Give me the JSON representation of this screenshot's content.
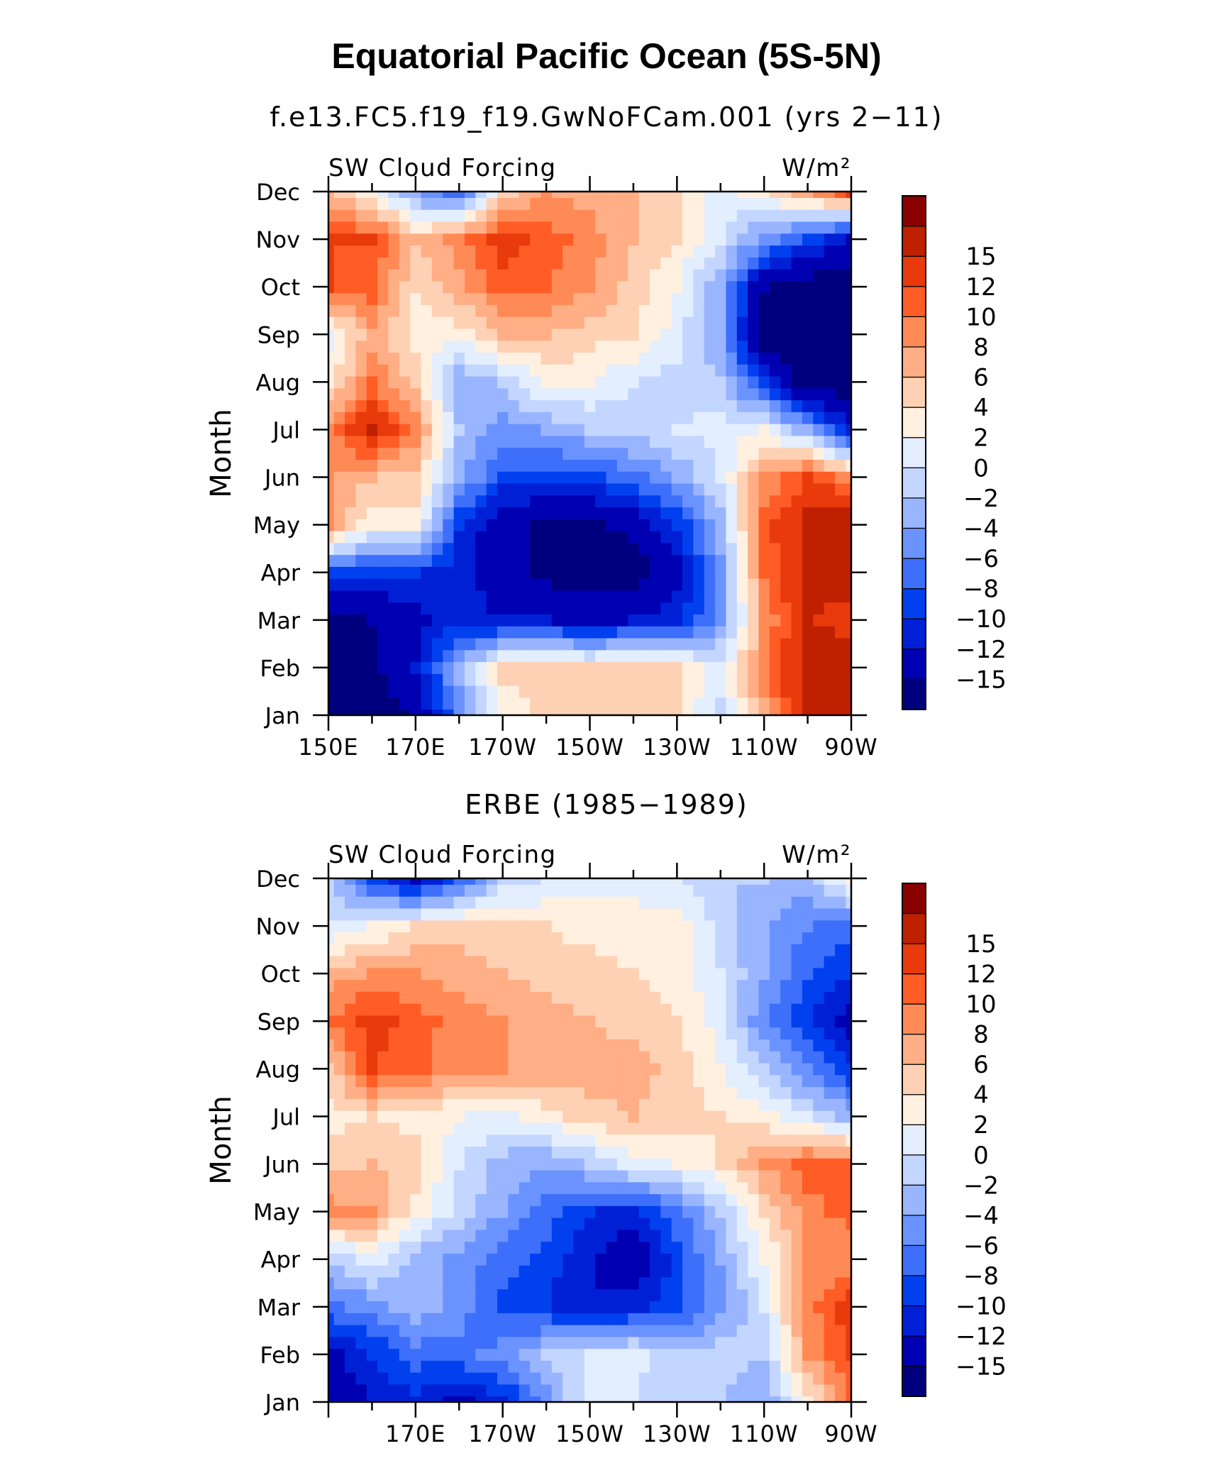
{
  "title": "Equatorial Pacific Ocean (5S-5N)",
  "colors": {
    "levels": [
      "#00007e",
      "#0000b3",
      "#0020d6",
      "#0040ef",
      "#3d6ffa",
      "#6a93ff",
      "#9ab5ff",
      "#c3d6ff",
      "#e3eeff",
      "#fff0e0",
      "#ffd1b4",
      "#ffae85",
      "#ff8a56",
      "#ff5c26",
      "#e83a0a",
      "#bf2000",
      "#8a0000"
    ],
    "level_labels": [
      "−15",
      "−12",
      "−10",
      "−8",
      "−6",
      "−4",
      "−2",
      "0",
      "2",
      "4",
      "6",
      "8",
      "10",
      "12",
      "15"
    ]
  },
  "chart_data": [
    {
      "type": "heatmap",
      "title": "f.e13.FC5.f19_f19.GwNoFCam.001 (yrs 2−11)",
      "left_label": "SW Cloud Forcing",
      "right_label": "W/m²",
      "ylabel": "Month",
      "xlabel": "",
      "x_ticks": [
        "150E",
        "170E",
        "170W",
        "150W",
        "130W",
        "110W",
        "90W"
      ],
      "y_ticks": [
        "Jan",
        "Feb",
        "Mar",
        "Apr",
        "May",
        "Jun",
        "Jul",
        "Aug",
        "Sep",
        "Oct",
        "Nov",
        "Dec"
      ],
      "x_lon": [
        150,
        160,
        170,
        180,
        190,
        200,
        210,
        220,
        230,
        240,
        250,
        260,
        270
      ],
      "colorbar": {
        "labels": [
          "−15",
          "−12",
          "−10",
          "−8",
          "−6",
          "−4",
          "−2",
          "0",
          "2",
          "4",
          "6",
          "8",
          "10",
          "12",
          "15"
        ]
      },
      "values": [
        [
          -17,
          -17,
          -15,
          -6,
          2,
          5,
          4,
          5,
          4,
          -1,
          7,
          16,
          16
        ],
        [
          -17,
          -16,
          -12,
          -3,
          5,
          5,
          4,
          5,
          4,
          1,
          9,
          16,
          17
        ],
        [
          -16,
          -15,
          -13,
          -11,
          -12,
          -12,
          -13,
          -12,
          -11,
          -5,
          8,
          15,
          14
        ],
        [
          -9,
          -10,
          -10,
          -11,
          -14,
          -16,
          -17,
          -17,
          -13,
          -5,
          10,
          16,
          16
        ],
        [
          9,
          2,
          3,
          -10,
          -14,
          -16,
          -16,
          -14,
          -10,
          -3,
          11,
          16,
          17
        ],
        [
          8,
          6,
          5,
          -3,
          -9,
          -9,
          -9,
          -7,
          -4,
          0,
          8,
          12,
          9
        ],
        [
          9,
          15,
          9,
          -2,
          -5,
          -4,
          -2,
          -1,
          0,
          1,
          2,
          -4,
          -12
        ],
        [
          3,
          10,
          5,
          -4,
          -2,
          3,
          2,
          0,
          -1,
          -2,
          -10,
          -17,
          -17
        ],
        [
          1,
          7,
          3,
          3,
          6,
          6,
          5,
          4,
          1,
          -4,
          -17,
          -17,
          -17
        ],
        [
          12,
          11,
          4,
          7,
          11,
          10,
          8,
          5,
          2,
          -4,
          -15,
          -17,
          -17
        ],
        [
          12,
          12,
          6,
          9,
          13,
          11,
          9,
          6,
          4,
          0,
          -5,
          -9,
          -13
        ],
        [
          6,
          3,
          -4,
          -8,
          5,
          8,
          7,
          6,
          4,
          1,
          3,
          7,
          12
        ]
      ]
    },
    {
      "type": "heatmap",
      "title": "ERBE (1985−1989)",
      "left_label": "SW Cloud Forcing",
      "right_label": "W/m²",
      "ylabel": "Month",
      "xlabel": "",
      "x_ticks": [
        "170E",
        "170W",
        "150W",
        "130W",
        "110W",
        "90W"
      ],
      "y_ticks": [
        "Jan",
        "Feb",
        "Mar",
        "Apr",
        "May",
        "Jun",
        "Jul",
        "Aug",
        "Sep",
        "Oct",
        "Nov",
        "Dec"
      ],
      "x_lon": [
        150,
        160,
        170,
        180,
        190,
        200,
        210,
        220,
        230,
        240,
        250,
        260,
        270
      ],
      "colorbar": {
        "labels": [
          "−15",
          "−12",
          "−10",
          "−8",
          "−6",
          "−4",
          "−2",
          "0",
          "2",
          "4",
          "6",
          "8",
          "10",
          "12",
          "15"
        ]
      },
      "values": [
        [
          -14,
          -12,
          -11,
          -13,
          -11,
          -5,
          1,
          0,
          -2,
          -2,
          -4,
          3,
          10
        ],
        [
          -13,
          -10,
          -7,
          -7,
          -5,
          -2,
          0,
          1,
          -2,
          -1,
          -2,
          8,
          12
        ],
        [
          -7,
          -5,
          -3,
          -5,
          -9,
          -10,
          -12,
          -11,
          -9,
          -5,
          0,
          9,
          14
        ],
        [
          -2,
          1,
          -3,
          -5,
          -7,
          -9,
          -12,
          -14,
          -9,
          -4,
          2,
          8,
          8
        ],
        [
          9,
          8,
          3,
          -1,
          -4,
          -7,
          -10,
          -11,
          -7,
          -2,
          4,
          9,
          11
        ],
        [
          5,
          6,
          5,
          0,
          -3,
          -4,
          -2,
          1,
          2,
          4,
          8,
          11,
          10
        ],
        [
          3,
          4,
          3,
          2,
          1,
          3,
          5,
          6,
          5,
          4,
          3,
          0,
          -3
        ],
        [
          5,
          12,
          11,
          8,
          8,
          7,
          7,
          7,
          5,
          2,
          -2,
          -6,
          -10
        ],
        [
          10,
          13,
          11,
          9,
          8,
          7,
          6,
          5,
          4,
          1,
          -6,
          -10,
          -13
        ],
        [
          7,
          8,
          8,
          7,
          6,
          5,
          5,
          4,
          3,
          0,
          -4,
          -8,
          -10
        ],
        [
          0,
          2,
          4,
          5,
          4,
          4,
          3,
          3,
          3,
          -1,
          -4,
          -6,
          -7
        ],
        [
          -2,
          -9,
          -13,
          -8,
          -1,
          0,
          1,
          1,
          0,
          -2,
          -2,
          -3,
          3
        ]
      ]
    }
  ]
}
